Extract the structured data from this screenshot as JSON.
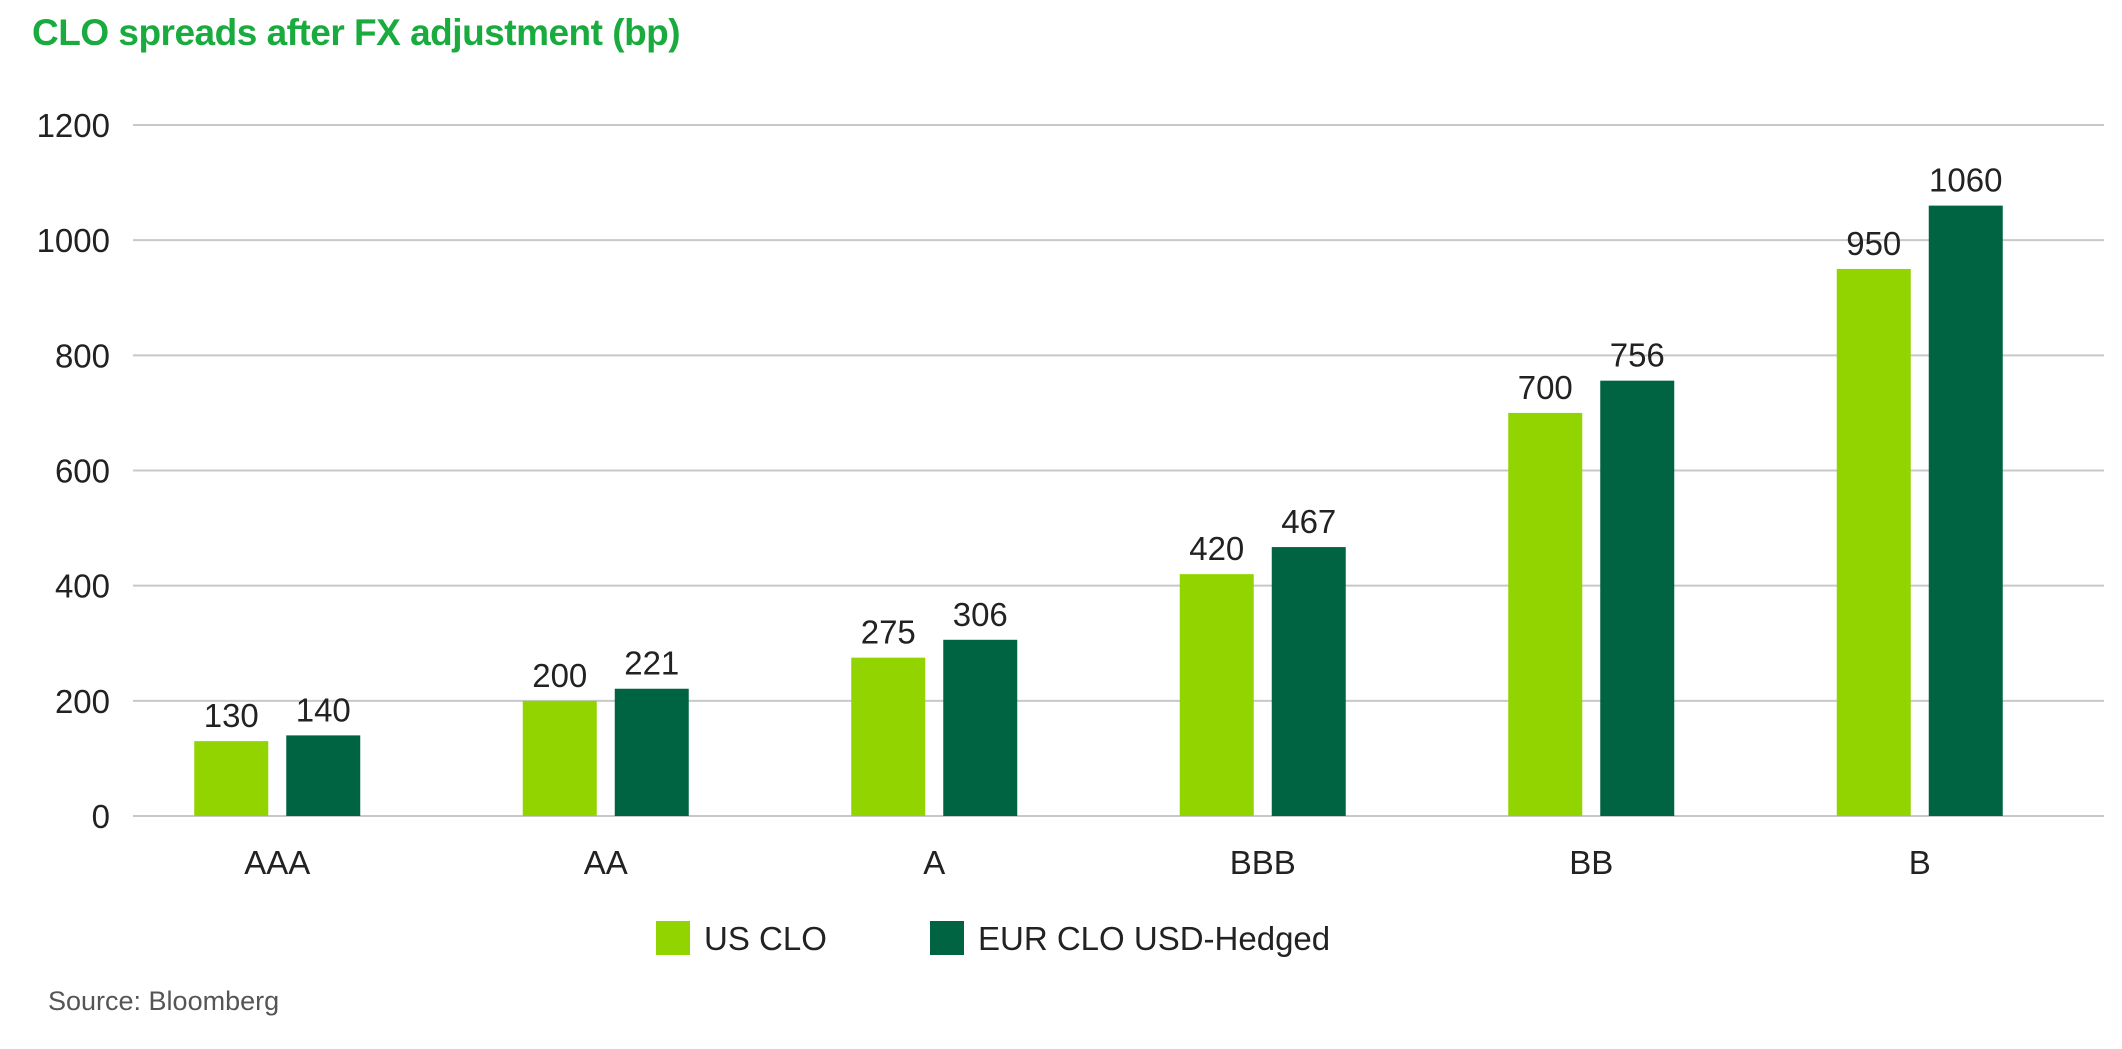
{
  "chart_data": {
    "type": "bar",
    "title": "CLO spreads after FX adjustment (bp)",
    "source": "Source: Bloomberg",
    "categories": [
      "AAA",
      "AA",
      "A",
      "BBB",
      "BB",
      "B"
    ],
    "series": [
      {
        "name": "US CLO",
        "color": "#92d400",
        "values": [
          130,
          200,
          275,
          420,
          700,
          950
        ]
      },
      {
        "name": "EUR CLO USD-Hedged",
        "color": "#006443",
        "values": [
          140,
          221,
          306,
          467,
          756,
          1060
        ]
      }
    ],
    "ylim": [
      0,
      1200
    ],
    "yticks": [
      0,
      200,
      400,
      600,
      800,
      1000,
      1200
    ],
    "grid": true,
    "legend_position": "bottom-center",
    "xlabel": "",
    "ylabel": ""
  }
}
